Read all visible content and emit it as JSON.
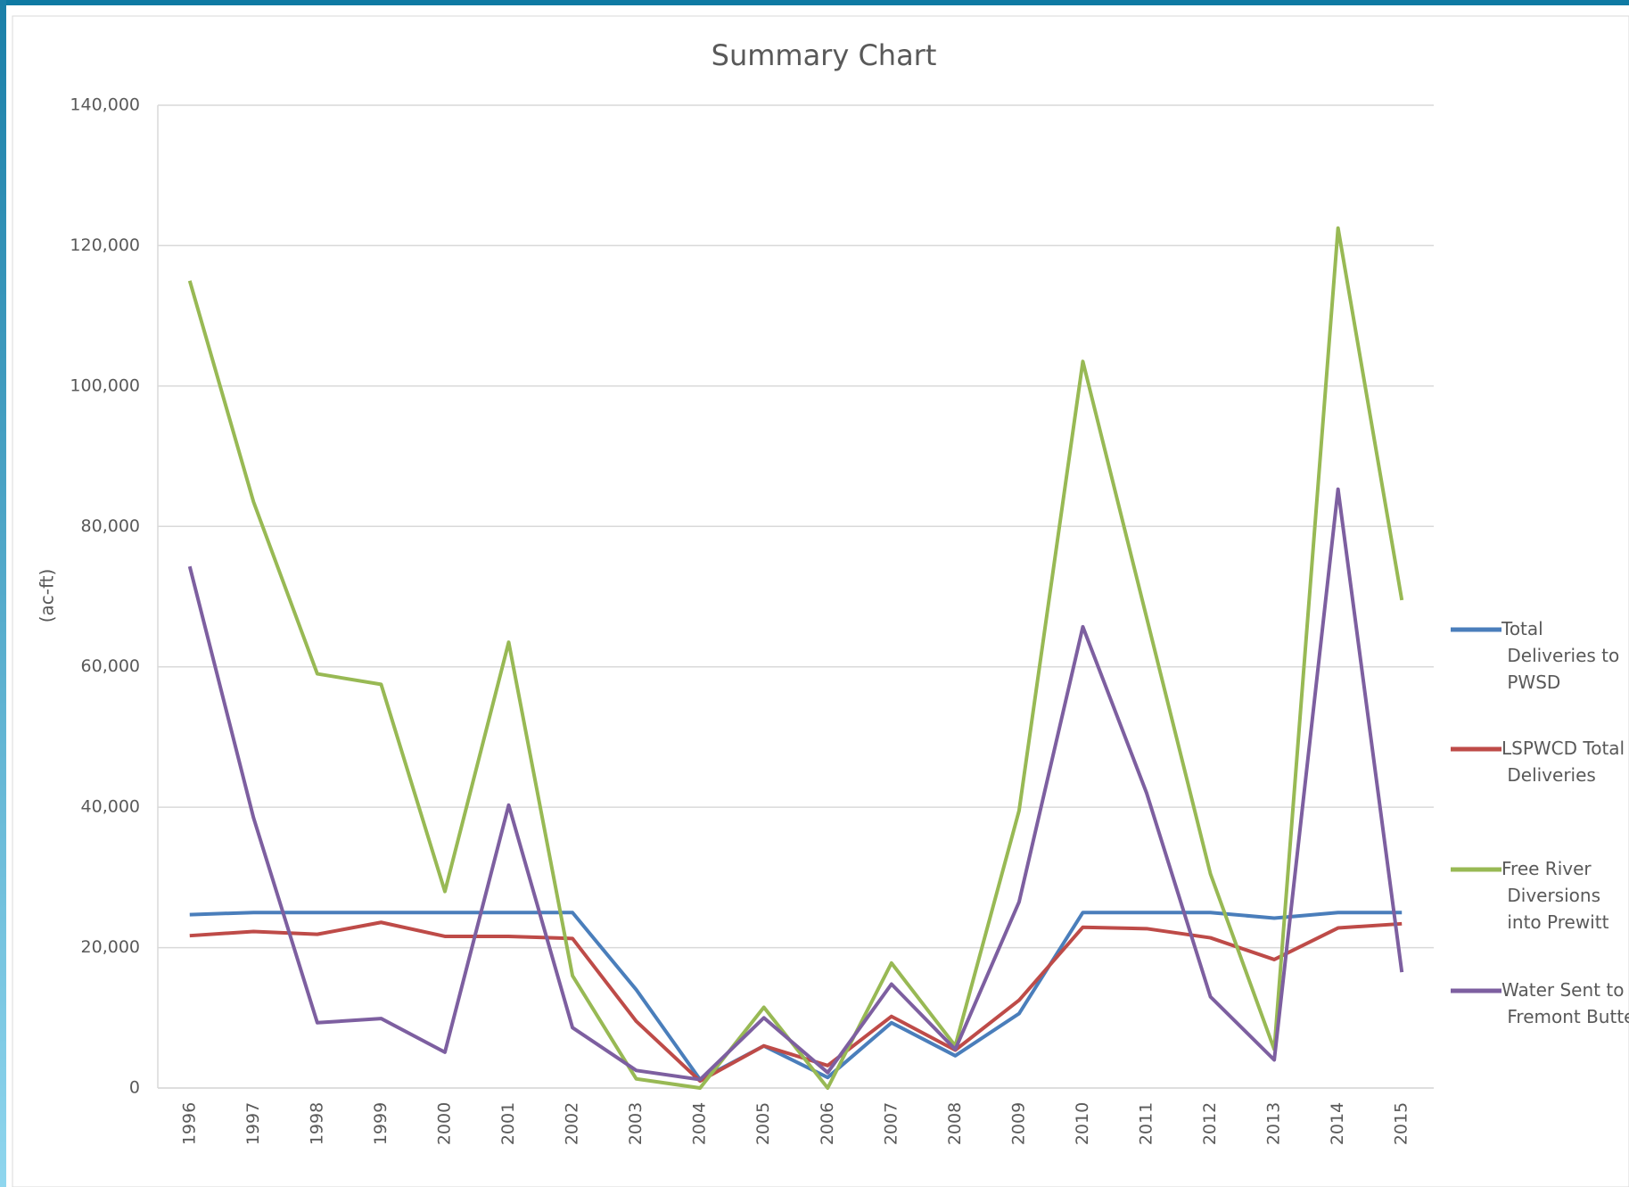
{
  "chart_data": {
    "type": "line",
    "title": "Summary Chart",
    "y_label": "(ac-ft)",
    "categories": [
      "1996",
      "1997",
      "1998",
      "1999",
      "2000",
      "2001",
      "2002",
      "2003",
      "2004",
      "2005",
      "2006",
      "2007",
      "2008",
      "2009",
      "2010",
      "2011",
      "2012",
      "2013",
      "2014",
      "2015"
    ],
    "series": [
      {
        "name": "Total Deliveries to PWSD",
        "color": "#4a7ebb",
        "values": [
          24700,
          25000,
          25000,
          25000,
          25000,
          25000,
          25000,
          14000,
          1200,
          6000,
          1500,
          9300,
          4600,
          10600,
          25000,
          25000,
          25000,
          24200,
          25000,
          25000
        ]
      },
      {
        "name": "LSPWCD Total Deliveries",
        "color": "#be4b48",
        "values": [
          21700,
          22300,
          21900,
          23600,
          21600,
          21600,
          21300,
          9500,
          1000,
          6000,
          3200,
          10200,
          5400,
          12500,
          22900,
          22700,
          21400,
          18300,
          22800,
          23400
        ]
      },
      {
        "name": "Free River Diversions into Prewitt",
        "color": "#98b954",
        "values": [
          115000,
          83500,
          59000,
          57500,
          28000,
          63500,
          16000,
          1300,
          0,
          11500,
          0,
          17800,
          6000,
          39500,
          103500,
          67000,
          30500,
          5500,
          122500,
          69500
        ]
      },
      {
        "name": "Water Sent to Fremont Butte",
        "color": "#7d5fa0",
        "values": [
          74300,
          38500,
          9300,
          9900,
          5100,
          40300,
          8600,
          2500,
          1200,
          10000,
          2200,
          14800,
          5500,
          26500,
          65700,
          42000,
          13000,
          4000,
          85300,
          16500
        ]
      }
    ],
    "ylim": [
      0,
      140000
    ],
    "yticks": [
      0,
      {
        "value": 20000,
        "label": "20,000"
      },
      {
        "value": 40000,
        "label": "40,000"
      },
      {
        "value": 60000,
        "label": "60,000"
      },
      {
        "value": 80000,
        "label": "80,000"
      },
      {
        "value": 100000,
        "label": "100,000"
      },
      {
        "value": 120000,
        "label": "120,000"
      },
      {
        "value": 140000,
        "label": "140,000"
      }
    ],
    "grid": true,
    "legend": "right"
  }
}
